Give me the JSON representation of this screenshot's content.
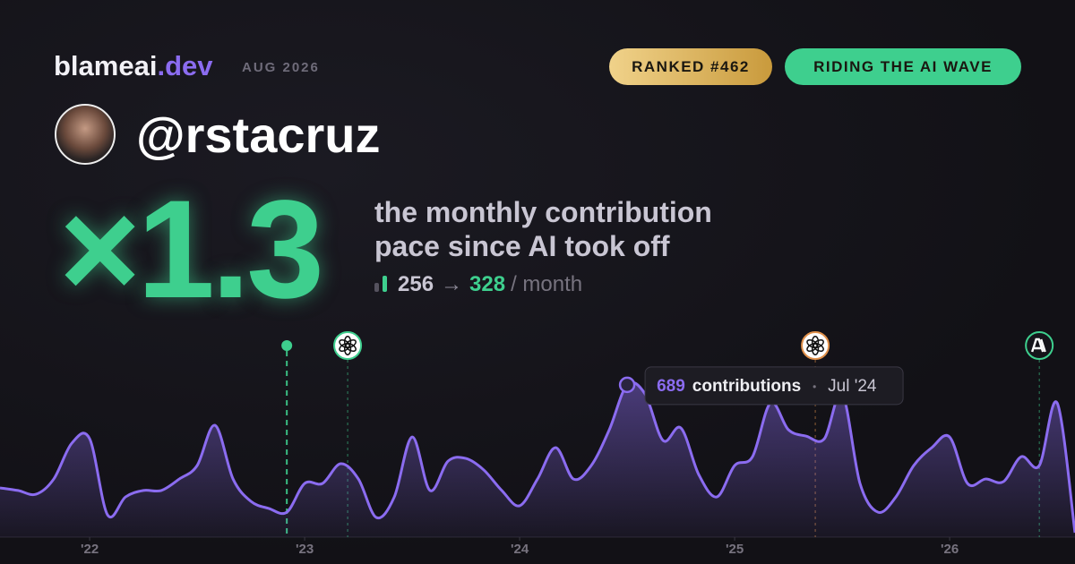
{
  "header": {
    "brand": "blameai",
    "brand_tld": ".dev",
    "date": "AUG 2026",
    "badges": [
      "RANKED #462",
      "RIDING THE AI WAVE"
    ]
  },
  "profile": {
    "handle": "@rstacruz"
  },
  "stats": {
    "multiplier": "×1.3",
    "description": [
      "the monthly contribution",
      "pace since AI took off"
    ],
    "before": 256,
    "arrow": "→",
    "after": 328,
    "unit": "/ month"
  },
  "chart_data": {
    "type": "area",
    "color": "#8b6cf0",
    "x": [
      2021.583,
      2021.667,
      2021.75,
      2021.833,
      2021.917,
      2022.0,
      2022.083,
      2022.167,
      2022.25,
      2022.333,
      2022.417,
      2022.5,
      2022.583,
      2022.667,
      2022.75,
      2022.833,
      2022.917,
      2023.0,
      2023.083,
      2023.167,
      2023.25,
      2023.333,
      2023.417,
      2023.5,
      2023.583,
      2023.667,
      2023.75,
      2023.833,
      2023.917,
      2024.0,
      2024.083,
      2024.167,
      2024.25,
      2024.333,
      2024.417,
      2024.5,
      2024.583,
      2024.667,
      2024.75,
      2024.833,
      2024.917,
      2025.0,
      2025.083,
      2025.167,
      2025.25,
      2025.333,
      2025.417,
      2025.5,
      2025.583,
      2025.667,
      2025.75,
      2025.833,
      2025.917,
      2026.0,
      2026.083,
      2026.167,
      2026.25,
      2026.333,
      2026.417,
      2026.5,
      2026.583
    ],
    "values": [
      223,
      211,
      194,
      263,
      425,
      445,
      101,
      182,
      211,
      211,
      263,
      324,
      506,
      263,
      162,
      130,
      113,
      243,
      243,
      332,
      263,
      89,
      182,
      453,
      211,
      344,
      356,
      304,
      211,
      142,
      263,
      405,
      263,
      324,
      486,
      689,
      648,
      437,
      494,
      283,
      182,
      324,
      364,
      607,
      486,
      457,
      445,
      648,
      243,
      113,
      182,
      324,
      405,
      453,
      243,
      263,
      251,
      364,
      324,
      607,
      20
    ],
    "xlim": [
      2021.583,
      2026.583
    ],
    "ylim": [
      0,
      810
    ],
    "xticks": [
      {
        "value": 2022,
        "label": "'22"
      },
      {
        "value": 2023,
        "label": "'23"
      },
      {
        "value": 2024,
        "label": "'24"
      },
      {
        "value": 2025,
        "label": "'25"
      },
      {
        "value": 2026,
        "label": "'26"
      }
    ],
    "events": [
      {
        "x": 2022.917,
        "color": "#3ecf8e",
        "logo": null
      },
      {
        "x": 2023.2,
        "color": "#3ecf8e",
        "logo": "openai"
      },
      {
        "x": 2025.375,
        "color": "#e0904a",
        "logo": "openai"
      },
      {
        "x": 2026.417,
        "color": "#3ecf8e",
        "logo": "anthropic"
      }
    ],
    "tooltip": {
      "x": 2024.5,
      "label": "contributions",
      "date": "Jul '24"
    }
  }
}
